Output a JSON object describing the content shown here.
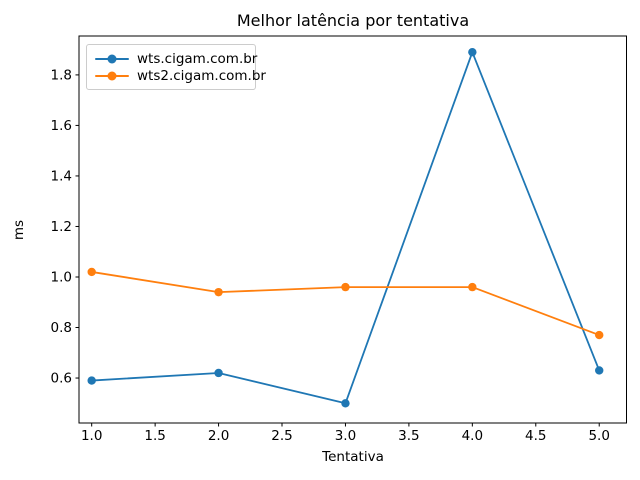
{
  "chart_data": {
    "type": "line",
    "title": "Melhor latência por tentativa",
    "xlabel": "Tentativa",
    "ylabel": "ms",
    "x": [
      1,
      2,
      3,
      4,
      5
    ],
    "series": [
      {
        "name": "wts.cigam.com.br",
        "color": "#1f77b4",
        "marker": "o",
        "values": [
          0.59,
          0.62,
          0.5,
          1.89,
          0.63
        ]
      },
      {
        "name": "wts2.cigam.com.br",
        "color": "#ff7f0e",
        "marker": "o",
        "values": [
          1.02,
          0.94,
          0.96,
          0.96,
          0.77
        ]
      }
    ],
    "xlim": [
      0.9,
      5.215
    ],
    "ylim": [
      0.422,
      1.954
    ],
    "xticks": {
      "values": [
        1.0,
        1.5,
        2.0,
        2.5,
        3.0,
        3.5,
        4.0,
        4.5,
        5.0
      ],
      "labels": [
        "1.0",
        "1.5",
        "2.0",
        "2.5",
        "3.0",
        "3.5",
        "4.0",
        "4.5",
        "5.0"
      ]
    },
    "yticks": {
      "values": [
        0.6,
        0.8,
        1.0,
        1.2,
        1.4,
        1.6,
        1.8
      ],
      "labels": [
        "0.6",
        "0.8",
        "1.0",
        "1.2",
        "1.4",
        "1.6",
        "1.8"
      ]
    },
    "grid": false,
    "legend_position": "upper left",
    "background_color": "#ffffff",
    "spine_color": "#000000",
    "legend_border_color": "#cccccc"
  }
}
